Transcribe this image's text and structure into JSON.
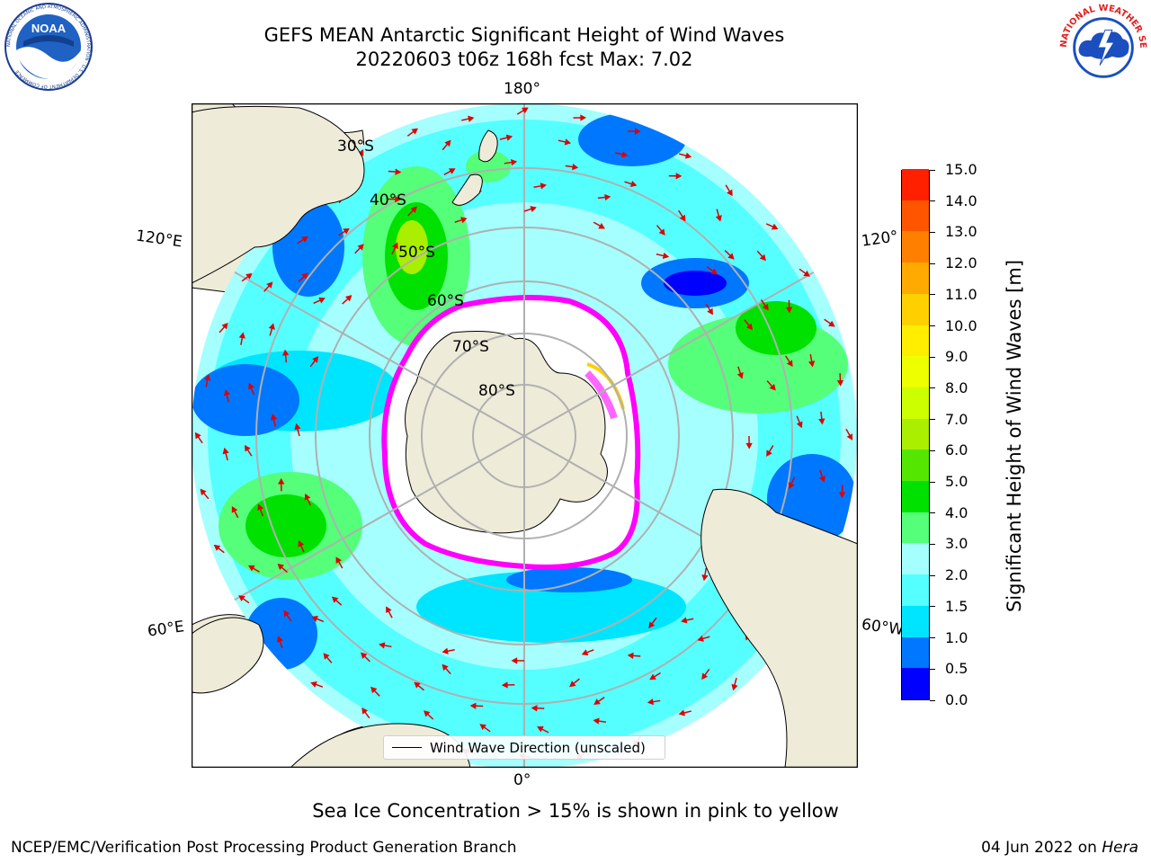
{
  "header": {
    "title_line1": "GEFS MEAN Antarctic Significant Height of Wind Waves",
    "title_line2": "20220603 t06z 168h fcst   Max: 7.02",
    "logo_left_text": "NOAA",
    "logo_left_ring": "NATIONAL OCEANIC AND ATMOSPHERIC ADMINISTRATION · U.S. DEPARTMENT OF COMMERCE",
    "logo_right_ring": "NATIONAL WEATHER SERVICE"
  },
  "map": {
    "projection": "south-polar-stereographic",
    "longitude_labels": {
      "top": "180°",
      "left_upper": "120°E",
      "right_upper": "120°",
      "left_lower": "60°E",
      "right_lower": "60°W",
      "bottom": "0°"
    },
    "latitude_labels": [
      "30°S",
      "40°S",
      "50°S",
      "60°S",
      "70°S",
      "80°S"
    ],
    "land_color": "#eeebd9",
    "ocean_colors": [
      "#0000ff",
      "#0077ff",
      "#00e5ff",
      "#55ffff",
      "#a5ffff",
      "#55ff7a",
      "#00e100"
    ],
    "sea_ice_colors": [
      "#ff00ff",
      "#ffd000"
    ],
    "arrow_color": "#e00000",
    "grid_color": "#b0b0b0"
  },
  "colorbar": {
    "label": "Significant Height of Wind Waves [m]",
    "ticks": [
      "0.0",
      "0.5",
      "1.0",
      "1.5",
      "2.0",
      "3.0",
      "4.0",
      "5.0",
      "6.0",
      "7.0",
      "8.0",
      "9.0",
      "10.0",
      "11.0",
      "12.0",
      "13.0",
      "14.0",
      "15.0"
    ],
    "colors": [
      "#0000ff",
      "#0077ff",
      "#00e5ff",
      "#55ffff",
      "#a5ffff",
      "#55ff7a",
      "#00e100",
      "#55e600",
      "#aaee00",
      "#ccff00",
      "#eeff00",
      "#ffee00",
      "#ffd000",
      "#ffaa00",
      "#ff8000",
      "#ff5500",
      "#ff2000"
    ]
  },
  "legend": {
    "label": "Wind Wave Direction (unscaled)"
  },
  "note": "Sea Ice Concentration > 15% is shown in pink to yellow",
  "footer": {
    "left": "NCEP/EMC/Verification Post Processing Product Generation Branch",
    "right_prefix": "04 Jun 2022 on ",
    "right_host": "Hera"
  }
}
